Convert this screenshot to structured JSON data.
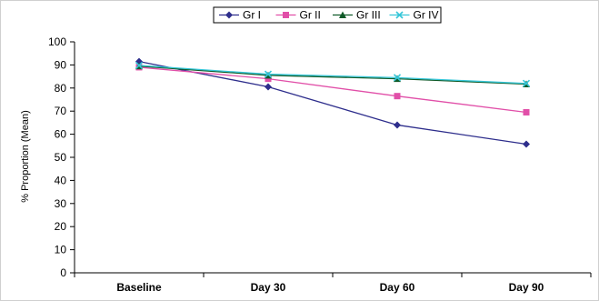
{
  "chart_data": {
    "type": "line",
    "title": "",
    "xlabel": "",
    "ylabel": "% Proportion (Mean)",
    "categories": [
      "Baseline",
      "Day 30",
      "Day 60",
      "Day 90"
    ],
    "ylim": [
      0,
      100
    ],
    "yticks": [
      0,
      10,
      20,
      30,
      40,
      50,
      60,
      70,
      80,
      90,
      100
    ],
    "grid": false,
    "legend_position": "top",
    "series": [
      {
        "name": "Gr I",
        "color": "#2E2E8C",
        "marker": "diamond",
        "values": [
          91.5,
          80.5,
          64,
          55.7
        ]
      },
      {
        "name": "Gr II",
        "color": "#E14FA8",
        "marker": "square",
        "values": [
          89,
          84,
          76.5,
          69.5
        ]
      },
      {
        "name": "Gr III",
        "color": "#0F5A28",
        "marker": "triangle",
        "values": [
          89.5,
          85.5,
          84,
          81.7
        ]
      },
      {
        "name": "Gr IV",
        "color": "#35C6D8",
        "marker": "x",
        "values": [
          89.8,
          86,
          84.5,
          82
        ]
      }
    ]
  }
}
